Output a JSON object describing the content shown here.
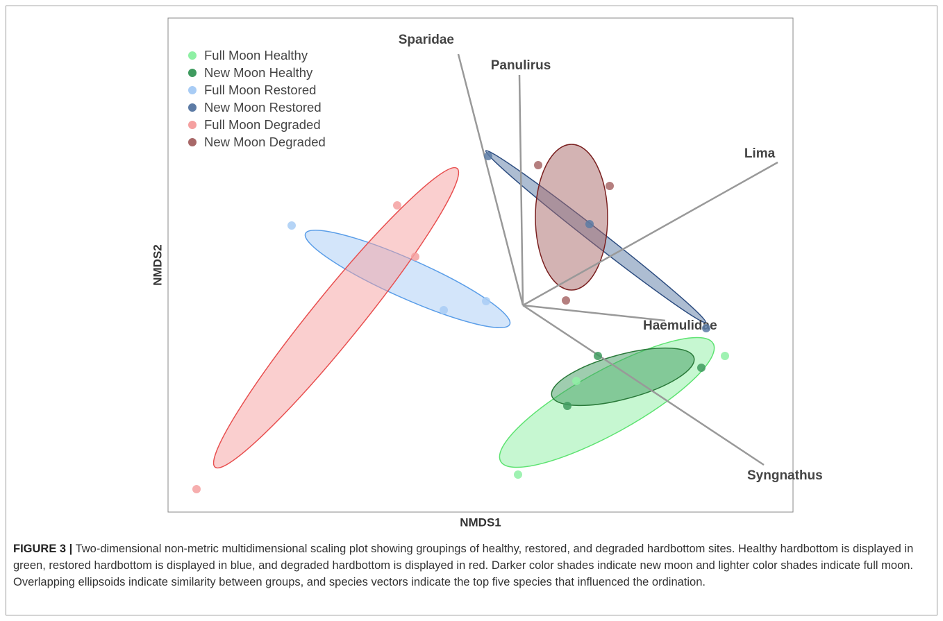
{
  "chart_data": {
    "type": "scatter",
    "xlabel": "NMDS1",
    "ylabel": "NMDS2",
    "xlim": [
      0,
      900
    ],
    "ylim": [
      0,
      712
    ],
    "series": [
      {
        "name": "Full Moon Healthy",
        "color": "#8ef0a4",
        "ellipse_color": "#5ee372",
        "x": [
          802,
          504,
          588
        ],
        "y": [
          225,
          54,
          189
        ],
        "ellipse": {
          "cx": 632,
          "cy": 158,
          "rx": 175,
          "ry": 45,
          "angle": 29
        }
      },
      {
        "name": "New Moon Healthy",
        "color": "#3f9b5f",
        "ellipse_color": "#2a7a3a",
        "x": [
          619,
          768,
          575
        ],
        "y": [
          225,
          208,
          153
        ],
        "ellipse": {
          "cx": 655,
          "cy": 195,
          "rx": 106,
          "ry": 32,
          "angle": 15
        }
      },
      {
        "name": "Full Moon Restored",
        "color": "#a8ccf5",
        "ellipse_color": "#5b9ee8",
        "x": [
          178,
          458,
          397
        ],
        "y": [
          413,
          304,
          291
        ],
        "ellipse": {
          "cx": 345,
          "cy": 336,
          "rx": 161,
          "ry": 28,
          "angle": -24
        }
      },
      {
        "name": "New Moon Restored",
        "color": "#5c7ba5",
        "ellipse_color": "#2d4d80",
        "x": [
          461,
          607,
          775
        ],
        "y": [
          513,
          415,
          265
        ],
        "ellipse": {
          "cx": 616,
          "cy": 397,
          "rx": 201,
          "ry": 10,
          "angle": -38
        }
      },
      {
        "name": "Full Moon Degraded",
        "color": "#f5a0a0",
        "ellipse_color": "#e85050",
        "x": [
          330,
          356,
          41
        ],
        "y": [
          442,
          368,
          33
        ],
        "ellipse": {
          "cx": 242,
          "cy": 280,
          "rx": 277,
          "ry": 35,
          "angle": 51
        }
      },
      {
        "name": "New Moon Degraded",
        "color": "#a86868",
        "ellipse_color": "#7a2020",
        "x": [
          533,
          636,
          573
        ],
        "y": [
          500,
          470,
          305
        ],
        "ellipse": {
          "cx": 581,
          "cy": 425,
          "rx": 52,
          "ry": 105,
          "angle": 0
        }
      }
    ],
    "vector_origin": {
      "x": 511,
      "y": 298
    },
    "vectors": [
      {
        "name": "Sparidae",
        "x": 418,
        "y": 660
      },
      {
        "name": "Panulirus",
        "x": 506,
        "y": 630
      },
      {
        "name": "Lima",
        "x": 878,
        "y": 504
      },
      {
        "name": "Haemulidae",
        "x": 716,
        "y": 276
      },
      {
        "name": "Syngnathus",
        "x": 858,
        "y": 68
      }
    ]
  },
  "caption": {
    "label": "FIGURE 3 |",
    "text": "Two-dimensional non-metric multidimensional scaling plot showing groupings of healthy, restored, and degraded hardbottom sites. Healthy hardbottom is displayed in green, restored hardbottom is displayed in blue, and degraded hardbottom is displayed in red. Darker color shades indicate new moon and lighter color shades indicate full moon. Overlapping ellipsoids indicate similarity between groups, and species vectors indicate the top five species that influenced the ordination."
  }
}
